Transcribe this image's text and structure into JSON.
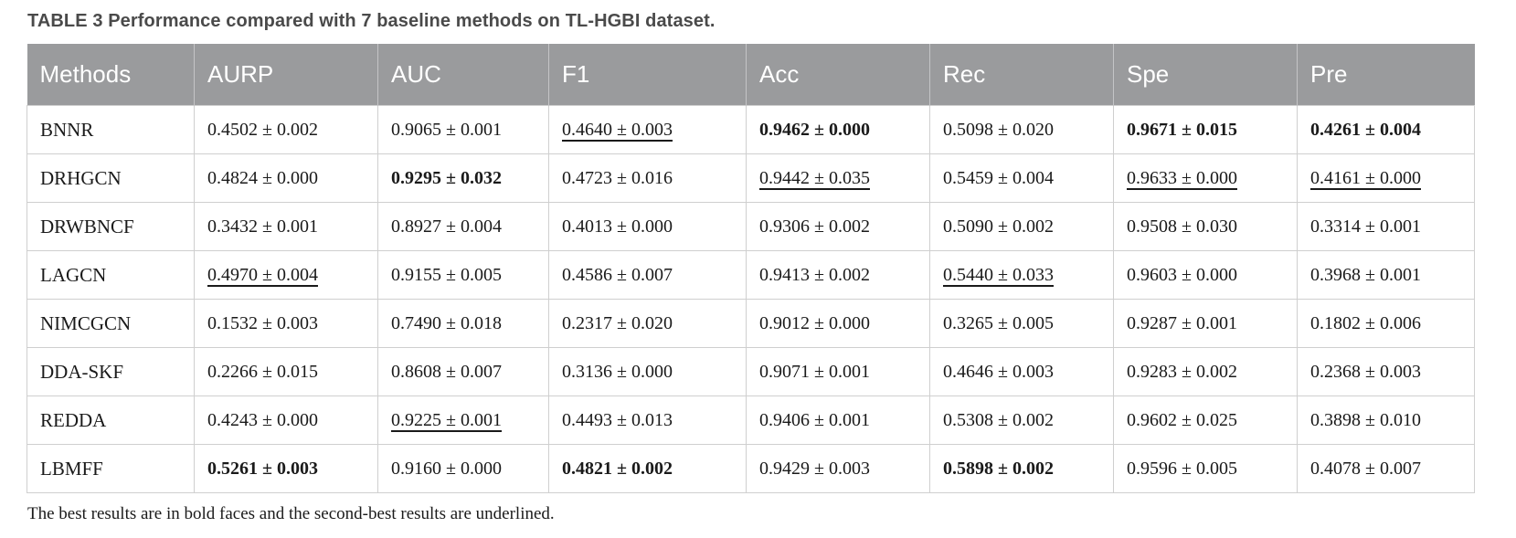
{
  "caption": "TABLE 3 Performance compared with 7 baseline methods on TL-HGBI dataset.",
  "table": {
    "headers": [
      "Methods",
      "AURP",
      "AUC",
      "F1",
      "Acc",
      "Rec",
      "Spe",
      "Pre"
    ],
    "rows": [
      {
        "method": "BNNR",
        "cells": [
          {
            "text": "0.4502 ± 0.002",
            "style": "normal"
          },
          {
            "text": "0.9065 ± 0.001",
            "style": "normal"
          },
          {
            "text": "0.4640 ± 0.003",
            "style": "underline"
          },
          {
            "text": "0.9462 ± 0.000",
            "style": "bold"
          },
          {
            "text": "0.5098 ± 0.020",
            "style": "normal"
          },
          {
            "text": "0.9671 ± 0.015",
            "style": "bold"
          },
          {
            "text": "0.4261 ± 0.004",
            "style": "bold"
          }
        ]
      },
      {
        "method": "DRHGCN",
        "cells": [
          {
            "text": "0.4824 ± 0.000",
            "style": "normal"
          },
          {
            "text": "0.9295 ± 0.032",
            "style": "bold"
          },
          {
            "text": "0.4723 ± 0.016",
            "style": "normal"
          },
          {
            "text": "0.9442 ± 0.035",
            "style": "underline"
          },
          {
            "text": "0.5459 ± 0.004",
            "style": "normal"
          },
          {
            "text": "0.9633 ± 0.000",
            "style": "underline"
          },
          {
            "text": "0.4161 ± 0.000",
            "style": "underline"
          }
        ]
      },
      {
        "method": "DRWBNCF",
        "cells": [
          {
            "text": "0.3432 ± 0.001",
            "style": "normal"
          },
          {
            "text": "0.8927 ± 0.004",
            "style": "normal"
          },
          {
            "text": "0.4013 ± 0.000",
            "style": "normal"
          },
          {
            "text": "0.9306 ± 0.002",
            "style": "normal"
          },
          {
            "text": "0.5090 ± 0.002",
            "style": "normal"
          },
          {
            "text": "0.9508 ± 0.030",
            "style": "normal"
          },
          {
            "text": "0.3314 ± 0.001",
            "style": "normal"
          }
        ]
      },
      {
        "method": "LAGCN",
        "cells": [
          {
            "text": "0.4970 ± 0.004",
            "style": "underline"
          },
          {
            "text": "0.9155 ± 0.005",
            "style": "normal"
          },
          {
            "text": "0.4586 ± 0.007",
            "style": "normal"
          },
          {
            "text": "0.9413 ± 0.002",
            "style": "normal"
          },
          {
            "text": "0.5440 ± 0.033",
            "style": "underline"
          },
          {
            "text": "0.9603 ± 0.000",
            "style": "normal"
          },
          {
            "text": "0.3968 ± 0.001",
            "style": "normal"
          }
        ]
      },
      {
        "method": "NIMCGCN",
        "cells": [
          {
            "text": "0.1532 ± 0.003",
            "style": "normal"
          },
          {
            "text": "0.7490 ± 0.018",
            "style": "normal"
          },
          {
            "text": "0.2317 ± 0.020",
            "style": "normal"
          },
          {
            "text": "0.9012 ± 0.000",
            "style": "normal"
          },
          {
            "text": "0.3265 ± 0.005",
            "style": "normal"
          },
          {
            "text": "0.9287 ± 0.001",
            "style": "normal"
          },
          {
            "text": "0.1802 ± 0.006",
            "style": "normal"
          }
        ]
      },
      {
        "method": "DDA-SKF",
        "cells": [
          {
            "text": "0.2266 ± 0.015",
            "style": "normal"
          },
          {
            "text": "0.8608 ± 0.007",
            "style": "normal"
          },
          {
            "text": "0.3136 ± 0.000",
            "style": "normal"
          },
          {
            "text": "0.9071 ± 0.001",
            "style": "normal"
          },
          {
            "text": "0.4646 ± 0.003",
            "style": "normal"
          },
          {
            "text": "0.9283 ± 0.002",
            "style": "normal"
          },
          {
            "text": "0.2368 ± 0.003",
            "style": "normal"
          }
        ]
      },
      {
        "method": "REDDA",
        "cells": [
          {
            "text": "0.4243 ± 0.000",
            "style": "normal"
          },
          {
            "text": "0.9225 ± 0.001",
            "style": "underline"
          },
          {
            "text": "0.4493 ± 0.013",
            "style": "normal"
          },
          {
            "text": "0.9406 ± 0.001",
            "style": "normal"
          },
          {
            "text": "0.5308 ± 0.002",
            "style": "normal"
          },
          {
            "text": "0.9602 ± 0.025",
            "style": "normal"
          },
          {
            "text": "0.3898 ± 0.010",
            "style": "normal"
          }
        ]
      },
      {
        "method": "LBMFF",
        "cells": [
          {
            "text": "0.5261 ± 0.003",
            "style": "bold"
          },
          {
            "text": "0.9160 ± 0.000",
            "style": "normal"
          },
          {
            "text": "0.4821 ± 0.002",
            "style": "bold"
          },
          {
            "text": "0.9429 ± 0.003",
            "style": "normal"
          },
          {
            "text": "0.5898 ± 0.002",
            "style": "bold"
          },
          {
            "text": "0.9596 ± 0.005",
            "style": "normal"
          },
          {
            "text": "0.4078 ± 0.007",
            "style": "normal"
          }
        ]
      }
    ]
  },
  "footnote": "The best results are in bold faces and the second-best results are underlined."
}
